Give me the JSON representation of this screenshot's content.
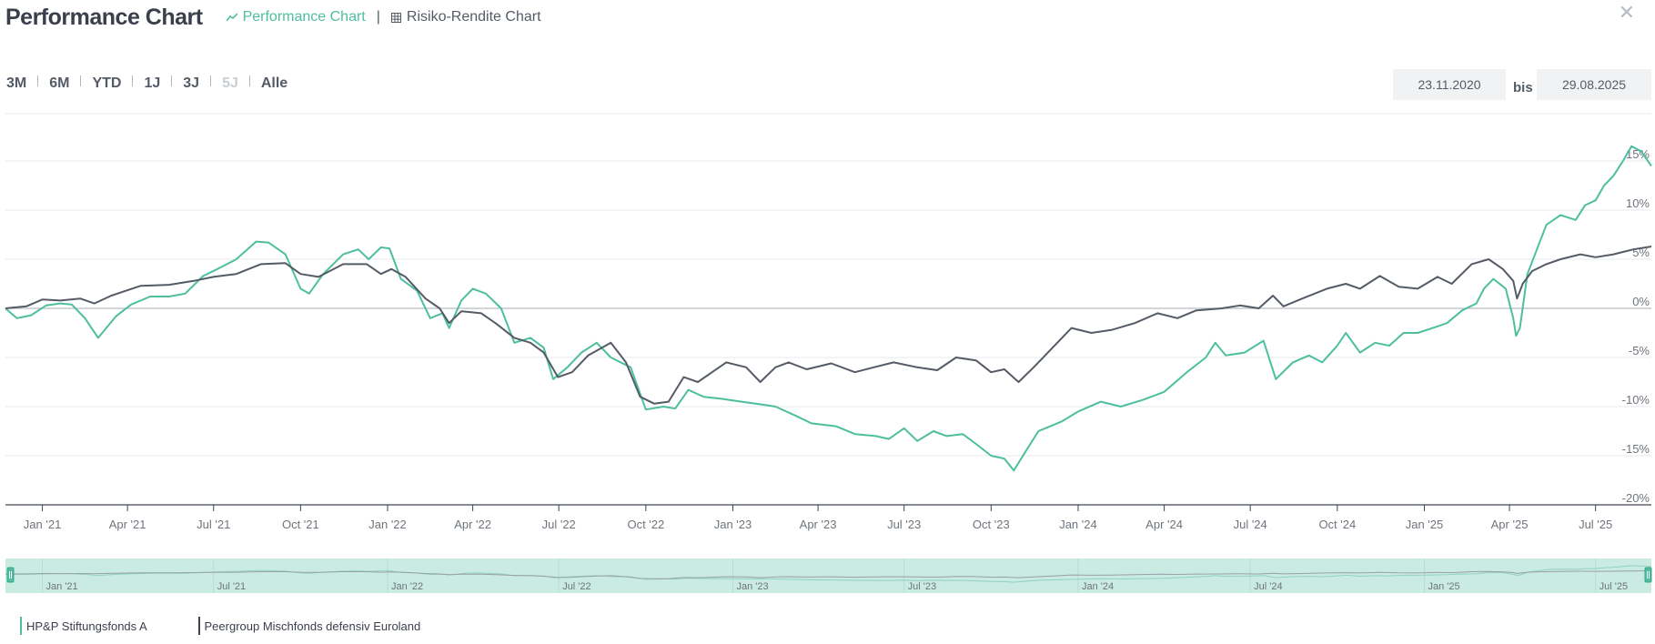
{
  "header": {
    "title": "Performance Chart",
    "tabs": [
      {
        "label": "Performance Chart",
        "icon": "trend-line-icon",
        "active": true
      },
      {
        "label": "Risiko-Rendite Chart",
        "icon": "grid-icon",
        "active": false
      }
    ],
    "close_icon": "close-icon"
  },
  "range_buttons": [
    "3M",
    "6M",
    "YTD",
    "1J",
    "3J",
    "5J",
    "Alle"
  ],
  "date_range": {
    "from": "23.11.2020",
    "separator": "bis",
    "to": "29.08.2025"
  },
  "colors": {
    "fund": "#4dbf9e",
    "peer": "#555b66",
    "navigator": "#c9ebe2"
  },
  "chart_data": {
    "type": "line",
    "y_ticks": [
      "15%",
      "10%",
      "5%",
      "0%",
      "-5%",
      "-10%",
      "-15%",
      "-20%"
    ],
    "y_values": [
      15,
      10,
      5,
      0,
      -5,
      -10,
      -15,
      -20
    ],
    "ylim": [
      -20,
      20
    ],
    "x_ticks": [
      "Jan '21",
      "Apr '21",
      "Jul '21",
      "Oct '21",
      "Jan '22",
      "Apr '22",
      "Jul '22",
      "Oct '22",
      "Jan '23",
      "Apr '23",
      "Jul '23",
      "Oct '23",
      "Jan '24",
      "Apr '24",
      "Jul '24",
      "Oct '24",
      "Jan '25",
      "Apr '25",
      "Jul '25"
    ],
    "x_tick_dates": [
      "2021-01-01",
      "2021-04-01",
      "2021-07-01",
      "2021-10-01",
      "2022-01-01",
      "2022-04-01",
      "2022-07-01",
      "2022-10-01",
      "2023-01-01",
      "2023-04-01",
      "2023-07-01",
      "2023-10-01",
      "2024-01-01",
      "2024-04-01",
      "2024-07-01",
      "2024-10-01",
      "2025-01-01",
      "2025-04-01",
      "2025-07-01"
    ],
    "xlim": [
      "2020-11-23",
      "2025-08-29"
    ],
    "navigator_ticks": [
      "Jan '21",
      "Jul '21",
      "Jan '22",
      "Jul '22",
      "Jan '23",
      "Jul '23",
      "Jan '24",
      "Jul '24",
      "Jan '25",
      "Jul '25"
    ],
    "navigator_tick_dates": [
      "2021-01-01",
      "2021-07-01",
      "2022-01-01",
      "2022-07-01",
      "2023-01-01",
      "2023-07-01",
      "2024-01-01",
      "2024-07-01",
      "2025-01-01",
      "2025-07-01"
    ],
    "series": [
      {
        "name": "HP&P Stiftungsfonds A",
        "points": [
          [
            "2020-11-23",
            0
          ],
          [
            "2020-12-05",
            -1.0
          ],
          [
            "2020-12-20",
            -0.7
          ],
          [
            "2021-01-05",
            0.3
          ],
          [
            "2021-01-20",
            0.5
          ],
          [
            "2021-02-01",
            0.4
          ],
          [
            "2021-02-15",
            -1.0
          ],
          [
            "2021-03-01",
            -3.0
          ],
          [
            "2021-03-20",
            -0.8
          ],
          [
            "2021-04-05",
            0.4
          ],
          [
            "2021-04-25",
            1.2
          ],
          [
            "2021-05-15",
            1.2
          ],
          [
            "2021-06-01",
            1.5
          ],
          [
            "2021-06-20",
            3.3
          ],
          [
            "2021-07-05",
            4.0
          ],
          [
            "2021-07-25",
            5.0
          ],
          [
            "2021-08-15",
            6.8
          ],
          [
            "2021-08-28",
            6.7
          ],
          [
            "2021-09-15",
            5.5
          ],
          [
            "2021-10-01",
            2.0
          ],
          [
            "2021-10-10",
            1.5
          ],
          [
            "2021-10-25",
            3.5
          ],
          [
            "2021-11-15",
            5.5
          ],
          [
            "2021-12-01",
            6.0
          ],
          [
            "2021-12-12",
            5.0
          ],
          [
            "2021-12-25",
            6.2
          ],
          [
            "2022-01-03",
            6.1
          ],
          [
            "2022-01-15",
            3.0
          ],
          [
            "2022-02-01",
            1.8
          ],
          [
            "2022-02-15",
            -1.0
          ],
          [
            "2022-02-28",
            -0.5
          ],
          [
            "2022-03-07",
            -2.0
          ],
          [
            "2022-03-20",
            0.8
          ],
          [
            "2022-04-01",
            2.0
          ],
          [
            "2022-04-15",
            1.5
          ],
          [
            "2022-05-01",
            0.0
          ],
          [
            "2022-05-15",
            -3.5
          ],
          [
            "2022-06-01",
            -3.0
          ],
          [
            "2022-06-15",
            -4.0
          ],
          [
            "2022-06-25",
            -7.2
          ],
          [
            "2022-07-10",
            -6.0
          ],
          [
            "2022-07-25",
            -4.5
          ],
          [
            "2022-08-10",
            -3.5
          ],
          [
            "2022-08-25",
            -5.0
          ],
          [
            "2022-09-15",
            -6.0
          ],
          [
            "2022-10-01",
            -10.3
          ],
          [
            "2022-10-20",
            -10.0
          ],
          [
            "2022-11-01",
            -10.2
          ],
          [
            "2022-11-15",
            -8.3
          ],
          [
            "2022-12-01",
            -9.0
          ],
          [
            "2022-12-20",
            -9.2
          ],
          [
            "2023-01-10",
            -9.5
          ],
          [
            "2023-02-01",
            -9.8
          ],
          [
            "2023-02-15",
            -10.0
          ],
          [
            "2023-03-10",
            -11.0
          ],
          [
            "2023-03-25",
            -11.7
          ],
          [
            "2023-04-20",
            -12.0
          ],
          [
            "2023-05-10",
            -12.8
          ],
          [
            "2023-06-01",
            -13.0
          ],
          [
            "2023-06-15",
            -13.3
          ],
          [
            "2023-07-01",
            -12.2
          ],
          [
            "2023-07-15",
            -13.5
          ],
          [
            "2023-08-01",
            -12.5
          ],
          [
            "2023-08-15",
            -13.0
          ],
          [
            "2023-09-01",
            -12.8
          ],
          [
            "2023-09-15",
            -13.8
          ],
          [
            "2023-10-01",
            -15.0
          ],
          [
            "2023-10-15",
            -15.3
          ],
          [
            "2023-10-25",
            -16.5
          ],
          [
            "2023-11-05",
            -14.8
          ],
          [
            "2023-11-20",
            -12.5
          ],
          [
            "2023-12-15",
            -11.5
          ],
          [
            "2024-01-01",
            -10.5
          ],
          [
            "2024-01-25",
            -9.5
          ],
          [
            "2024-02-15",
            -10.0
          ],
          [
            "2024-03-10",
            -9.3
          ],
          [
            "2024-04-01",
            -8.5
          ],
          [
            "2024-04-25",
            -6.5
          ],
          [
            "2024-05-15",
            -5.0
          ],
          [
            "2024-05-25",
            -3.5
          ],
          [
            "2024-06-05",
            -4.8
          ],
          [
            "2024-06-25",
            -4.5
          ],
          [
            "2024-07-15",
            -3.3
          ],
          [
            "2024-07-28",
            -7.2
          ],
          [
            "2024-08-15",
            -5.5
          ],
          [
            "2024-09-01",
            -4.8
          ],
          [
            "2024-09-15",
            -5.5
          ],
          [
            "2024-10-01",
            -3.8
          ],
          [
            "2024-10-10",
            -2.5
          ],
          [
            "2024-10-25",
            -4.5
          ],
          [
            "2024-11-10",
            -3.5
          ],
          [
            "2024-11-25",
            -3.8
          ],
          [
            "2024-12-10",
            -2.5
          ],
          [
            "2024-12-25",
            -2.5
          ],
          [
            "2025-01-10",
            -2.0
          ],
          [
            "2025-01-25",
            -1.5
          ],
          [
            "2025-02-10",
            -0.2
          ],
          [
            "2025-02-25",
            0.5
          ],
          [
            "2025-03-05",
            2.0
          ],
          [
            "2025-03-15",
            3.0
          ],
          [
            "2025-03-28",
            2.0
          ],
          [
            "2025-04-05",
            -1.0
          ],
          [
            "2025-04-08",
            -2.8
          ],
          [
            "2025-04-12",
            -2.0
          ],
          [
            "2025-04-20",
            3.5
          ],
          [
            "2025-04-30",
            6.0
          ],
          [
            "2025-05-10",
            8.5
          ],
          [
            "2025-05-25",
            9.5
          ],
          [
            "2025-06-10",
            9.0
          ],
          [
            "2025-06-20",
            10.5
          ],
          [
            "2025-07-01",
            11.0
          ],
          [
            "2025-07-10",
            12.5
          ],
          [
            "2025-07-20",
            13.5
          ],
          [
            "2025-07-30",
            15.0
          ],
          [
            "2025-08-08",
            16.5
          ],
          [
            "2025-08-18",
            16.0
          ],
          [
            "2025-08-29",
            14.5
          ]
        ]
      },
      {
        "name": "Peergroup Mischfonds defensiv Euroland",
        "points": [
          [
            "2020-11-23",
            0
          ],
          [
            "2020-12-15",
            0.2
          ],
          [
            "2021-01-01",
            0.9
          ],
          [
            "2021-01-20",
            0.8
          ],
          [
            "2021-02-10",
            1.0
          ],
          [
            "2021-02-25",
            0.5
          ],
          [
            "2021-03-15",
            1.3
          ],
          [
            "2021-04-15",
            2.3
          ],
          [
            "2021-05-15",
            2.4
          ],
          [
            "2021-06-10",
            2.8
          ],
          [
            "2021-07-01",
            3.2
          ],
          [
            "2021-07-25",
            3.5
          ],
          [
            "2021-08-20",
            4.5
          ],
          [
            "2021-09-15",
            4.6
          ],
          [
            "2021-10-01",
            3.5
          ],
          [
            "2021-10-20",
            3.2
          ],
          [
            "2021-11-15",
            4.5
          ],
          [
            "2021-12-10",
            4.5
          ],
          [
            "2021-12-25",
            3.5
          ],
          [
            "2022-01-05",
            4.0
          ],
          [
            "2022-01-20",
            3.2
          ],
          [
            "2022-02-10",
            1.0
          ],
          [
            "2022-02-25",
            0.0
          ],
          [
            "2022-03-07",
            -1.5
          ],
          [
            "2022-03-20",
            -0.3
          ],
          [
            "2022-04-10",
            -0.5
          ],
          [
            "2022-04-25",
            -1.5
          ],
          [
            "2022-05-15",
            -3.0
          ],
          [
            "2022-06-01",
            -3.5
          ],
          [
            "2022-06-15",
            -4.5
          ],
          [
            "2022-06-30",
            -7.0
          ],
          [
            "2022-07-15",
            -6.5
          ],
          [
            "2022-08-01",
            -4.8
          ],
          [
            "2022-08-25",
            -3.5
          ],
          [
            "2022-09-10",
            -5.5
          ],
          [
            "2022-09-25",
            -9.0
          ],
          [
            "2022-10-10",
            -9.7
          ],
          [
            "2022-10-25",
            -9.5
          ],
          [
            "2022-11-10",
            -7.0
          ],
          [
            "2022-11-25",
            -7.5
          ],
          [
            "2022-12-10",
            -6.5
          ],
          [
            "2022-12-25",
            -5.5
          ],
          [
            "2023-01-15",
            -6.0
          ],
          [
            "2023-01-30",
            -7.5
          ],
          [
            "2023-02-15",
            -6.0
          ],
          [
            "2023-03-01",
            -5.5
          ],
          [
            "2023-03-20",
            -6.2
          ],
          [
            "2023-04-15",
            -5.6
          ],
          [
            "2023-05-10",
            -6.5
          ],
          [
            "2023-05-30",
            -6.0
          ],
          [
            "2023-06-20",
            -5.5
          ],
          [
            "2023-07-15",
            -6.0
          ],
          [
            "2023-08-05",
            -6.3
          ],
          [
            "2023-08-25",
            -5.0
          ],
          [
            "2023-09-15",
            -5.3
          ],
          [
            "2023-10-01",
            -6.5
          ],
          [
            "2023-10-15",
            -6.2
          ],
          [
            "2023-10-30",
            -7.5
          ],
          [
            "2023-11-15",
            -6.0
          ],
          [
            "2023-12-05",
            -4.0
          ],
          [
            "2023-12-25",
            -2.0
          ],
          [
            "2024-01-15",
            -2.5
          ],
          [
            "2024-02-05",
            -2.2
          ],
          [
            "2024-03-01",
            -1.5
          ],
          [
            "2024-03-25",
            -0.5
          ],
          [
            "2024-04-15",
            -1.0
          ],
          [
            "2024-05-05",
            -0.2
          ],
          [
            "2024-06-01",
            0.0
          ],
          [
            "2024-06-20",
            0.3
          ],
          [
            "2024-07-10",
            0.0
          ],
          [
            "2024-07-25",
            1.3
          ],
          [
            "2024-08-05",
            0.2
          ],
          [
            "2024-08-25",
            1.0
          ],
          [
            "2024-09-20",
            2.0
          ],
          [
            "2024-10-10",
            2.5
          ],
          [
            "2024-10-25",
            2.0
          ],
          [
            "2024-11-15",
            3.3
          ],
          [
            "2024-12-05",
            2.2
          ],
          [
            "2024-12-25",
            2.0
          ],
          [
            "2025-01-15",
            3.2
          ],
          [
            "2025-01-30",
            2.5
          ],
          [
            "2025-02-20",
            4.5
          ],
          [
            "2025-03-10",
            5.0
          ],
          [
            "2025-03-25",
            4.0
          ],
          [
            "2025-04-05",
            2.8
          ],
          [
            "2025-04-09",
            1.0
          ],
          [
            "2025-04-15",
            2.5
          ],
          [
            "2025-04-25",
            3.8
          ],
          [
            "2025-05-10",
            4.5
          ],
          [
            "2025-05-25",
            5.0
          ],
          [
            "2025-06-15",
            5.5
          ],
          [
            "2025-07-01",
            5.2
          ],
          [
            "2025-07-20",
            5.5
          ],
          [
            "2025-08-10",
            6.0
          ],
          [
            "2025-08-29",
            6.3
          ]
        ]
      }
    ]
  }
}
